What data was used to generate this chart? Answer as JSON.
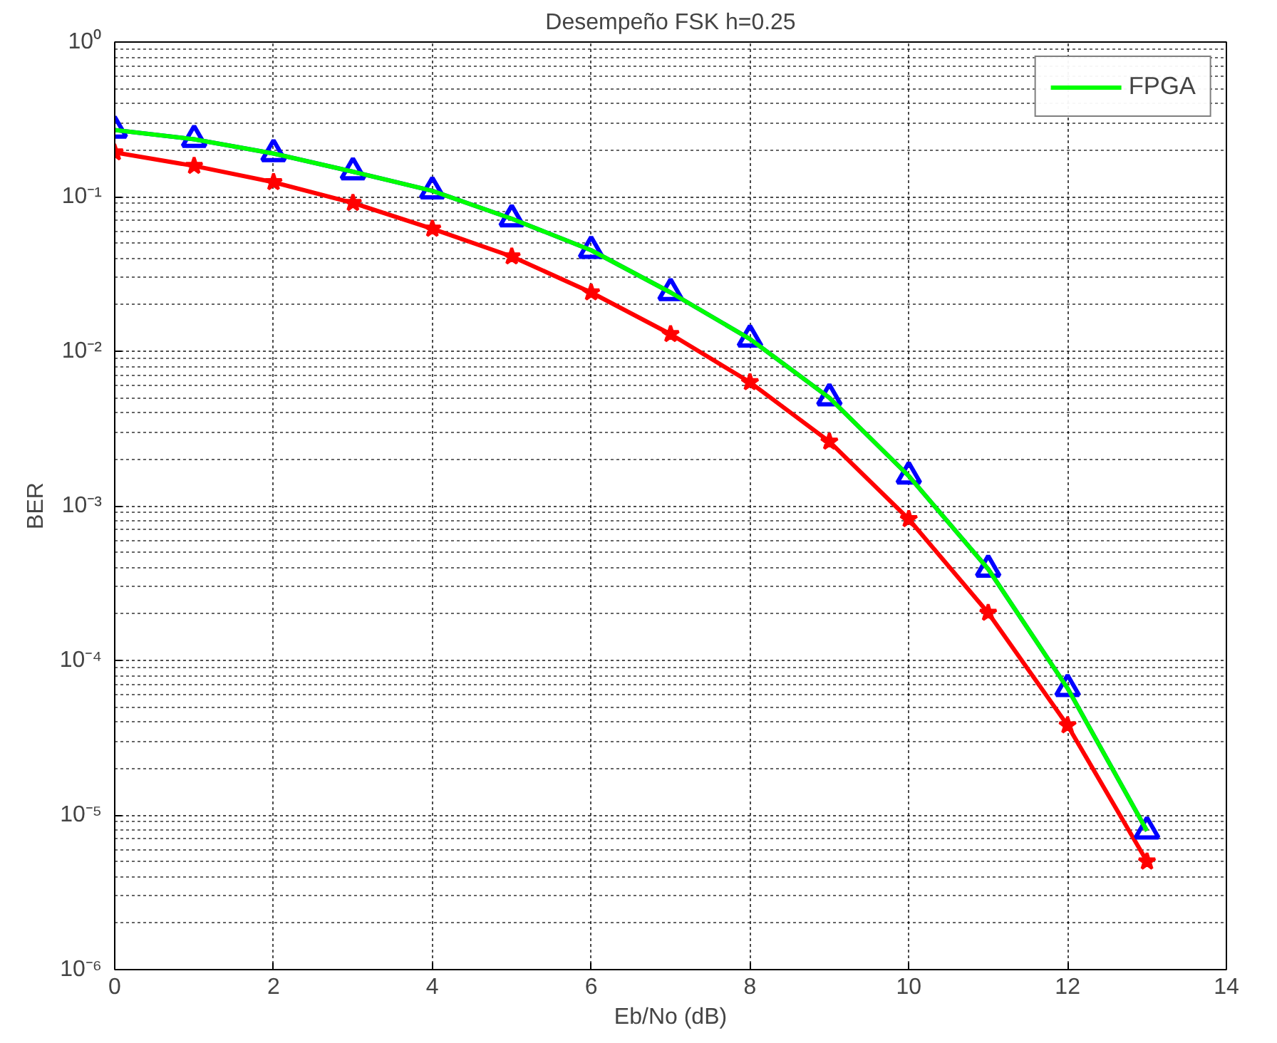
{
  "chart_data": {
    "type": "line",
    "title": "Desempeño FSK h=0.25",
    "xlabel": "Eb/No (dB)",
    "ylabel": "BER",
    "x": [
      0,
      1,
      2,
      3,
      4,
      5,
      6,
      7,
      8,
      9,
      10,
      11,
      12,
      13
    ],
    "series": [
      {
        "color": "#ff0000",
        "marker": "star",
        "values": [
          0.193,
          0.158,
          0.124,
          0.091,
          0.062,
          0.041,
          0.024,
          0.0129,
          0.0063,
          0.0026,
          0.00082,
          0.000203,
          3.8e-05,
          5e-06
        ]
      },
      {
        "color": "#0000ff",
        "marker": "triangle",
        "values": [
          0.27,
          0.235,
          0.19,
          0.145,
          0.109,
          0.072,
          0.045,
          0.024,
          0.012,
          0.005,
          0.00156,
          0.00039,
          6.6e-05,
          7.9e-06
        ]
      },
      {
        "name": "FPGA",
        "color": "#00ff00",
        "marker": "none",
        "values": [
          0.27,
          0.235,
          0.19,
          0.145,
          0.109,
          0.072,
          0.045,
          0.024,
          0.012,
          0.005,
          0.00156,
          0.00039,
          6.6e-05,
          7.9e-06
        ]
      }
    ],
    "log": "y",
    "xlim": [
      0,
      14
    ],
    "ylim": [
      1e-06,
      1
    ],
    "xticks": [
      0,
      2,
      4,
      6,
      8,
      10,
      12,
      14
    ],
    "yticks": [
      {
        "value": 1e-06,
        "label": "10⁻⁶"
      },
      {
        "value": 1e-05,
        "label": "10⁻⁵"
      },
      {
        "value": 0.0001,
        "label": "10⁻⁴"
      },
      {
        "value": 0.001,
        "label": "10⁻³"
      },
      {
        "value": 0.01,
        "label": "10⁻²"
      },
      {
        "value": 0.1,
        "label": "10⁻¹"
      },
      {
        "value": 1,
        "label": "10⁰"
      }
    ],
    "grid": true,
    "legend": "top right",
    "line_style": "solid"
  }
}
